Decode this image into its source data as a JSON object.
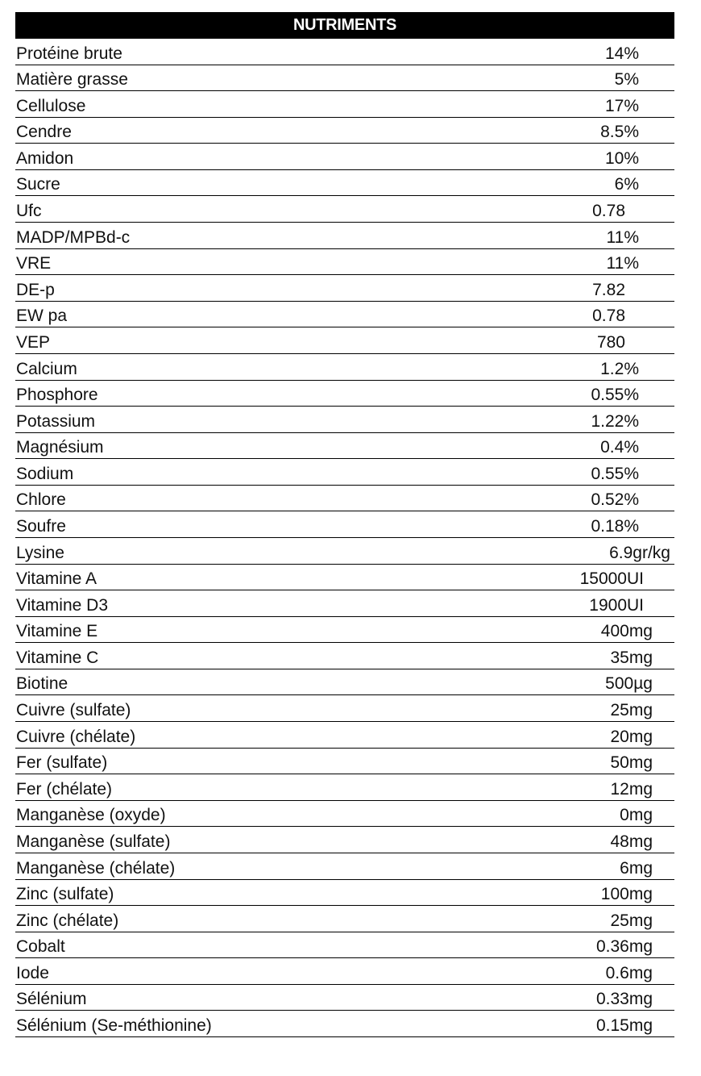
{
  "header": "NUTRIMENTS",
  "rows": [
    {
      "name": "Protéine brute",
      "value": "14%"
    },
    {
      "name": "Matière grasse",
      "value": "5%"
    },
    {
      "name": "Cellulose",
      "value": "17%"
    },
    {
      "name": "Cendre",
      "value": "8.5%"
    },
    {
      "name": "Amidon",
      "value": "10%"
    },
    {
      "name": "Sucre",
      "value": "6%"
    },
    {
      "name": "Ufc",
      "value": "0.78"
    },
    {
      "name": "MADP/MPBd-c",
      "value": "11%"
    },
    {
      "name": "VRE",
      "value": "11%"
    },
    {
      "name": "DE-p",
      "value": "7.82"
    },
    {
      "name": "EW pa",
      "value": "0.78"
    },
    {
      "name": "VEP",
      "value": "780"
    },
    {
      "name": "Calcium",
      "value": "1.2%"
    },
    {
      "name": "Phosphore",
      "value": "0.55%"
    },
    {
      "name": "Potassium",
      "value": "1.22%"
    },
    {
      "name": "Magnésium",
      "value": "0.4%"
    },
    {
      "name": "Sodium",
      "value": "0.55%"
    },
    {
      "name": "Chlore",
      "value": "0.52%"
    },
    {
      "name": "Soufre",
      "value": "0.18%"
    },
    {
      "name": "Lysine",
      "value": "6.9gr/kg"
    },
    {
      "name": "Vitamine A",
      "value": "15000UI"
    },
    {
      "name": "Vitamine D3",
      "value": "1900UI"
    },
    {
      "name": "Vitamine E",
      "value": "400mg"
    },
    {
      "name": "Vitamine C",
      "value": "35mg"
    },
    {
      "name": "Biotine",
      "value": "500µg"
    },
    {
      "name": "Cuivre (sulfate)",
      "value": "25mg"
    },
    {
      "name": "Cuivre (chélate)",
      "value": "20mg"
    },
    {
      "name": "Fer (sulfate)",
      "value": "50mg"
    },
    {
      "name": "Fer (chélate)",
      "value": "12mg"
    },
    {
      "name": "Manganèse (oxyde)",
      "value": "0mg"
    },
    {
      "name": "Manganèse (sulfate)",
      "value": "48mg"
    },
    {
      "name": "Manganèse (chélate)",
      "value": "6mg"
    },
    {
      "name": "Zinc (sulfate)",
      "value": "100mg"
    },
    {
      "name": "Zinc (chélate)",
      "value": "25mg"
    },
    {
      "name": "Cobalt",
      "value": "0.36mg"
    },
    {
      "name": "Iode",
      "value": "0.6mg"
    },
    {
      "name": "Sélénium",
      "value": "0.33mg"
    },
    {
      "name": "Sélénium (Se-méthionine)",
      "value": "0.15mg"
    }
  ]
}
